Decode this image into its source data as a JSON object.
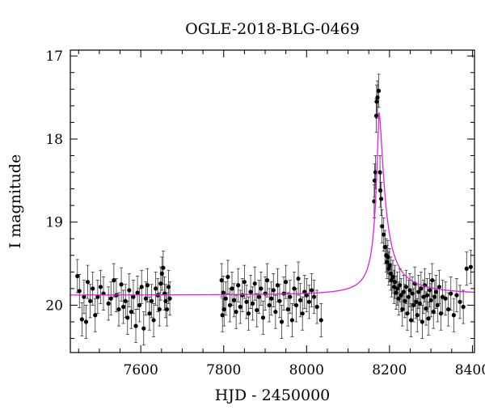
{
  "chart_data": {
    "type": "scatter",
    "title": "OGLE-2018-BLG-0469",
    "xlabel": "HJD - 2450000",
    "ylabel": "I magnitude",
    "xlim": [
      7430,
      8405
    ],
    "ylim": [
      20.57,
      16.93
    ],
    "y_inverted": true,
    "x_ticks": [
      7600,
      7800,
      8000,
      8200,
      8400
    ],
    "y_ticks": [
      17,
      18,
      19,
      20
    ],
    "grid": false,
    "marker_color": "#000000",
    "model_color": "#e020e0",
    "model": {
      "t0": 8175,
      "baseline": 19.88,
      "peak": 17.68,
      "tau_rise": 9,
      "tau_decay": 16,
      "gamma": 0.55
    },
    "error_bar": 0.2,
    "series": [
      {
        "points": [
          [
            7447,
            19.65
          ],
          [
            7452,
            19.83
          ],
          [
            7458,
            20.17
          ],
          [
            7463,
            19.9
          ],
          [
            7468,
            20.2
          ],
          [
            7472,
            19.72
          ],
          [
            7478,
            19.95
          ],
          [
            7484,
            19.8
          ],
          [
            7490,
            20.12
          ],
          [
            7496,
            19.9
          ],
          [
            7503,
            19.78
          ],
          [
            7510,
            19.86
          ],
          [
            7522,
            19.98
          ],
          [
            7528,
            19.92
          ],
          [
            7535,
            19.7
          ],
          [
            7541,
            19.88
          ],
          [
            7547,
            20.05
          ],
          [
            7553,
            19.75
          ],
          [
            7558,
            20.02
          ],
          [
            7563,
            19.95
          ],
          [
            7568,
            20.15
          ],
          [
            7572,
            19.82
          ],
          [
            7577,
            20.08
          ],
          [
            7582,
            19.9
          ],
          [
            7588,
            20.25
          ],
          [
            7592,
            19.85
          ],
          [
            7597,
            20.0
          ],
          [
            7602,
            19.78
          ],
          [
            7607,
            20.28
          ],
          [
            7612,
            19.92
          ],
          [
            7616,
            19.76
          ],
          [
            7621,
            20.1
          ],
          [
            7626,
            19.95
          ],
          [
            7631,
            20.18
          ],
          [
            7636,
            19.8
          ],
          [
            7641,
            19.88
          ],
          [
            7645,
            20.05
          ],
          [
            7648,
            19.74
          ],
          [
            7651,
            19.62
          ],
          [
            7654,
            19.55
          ],
          [
            7657,
            19.86
          ],
          [
            7660,
            19.95
          ],
          [
            7663,
            20.05
          ],
          [
            7667,
            19.78
          ],
          [
            7670,
            19.92
          ],
          [
            7795,
            19.7
          ],
          [
            7797,
            20.12
          ],
          [
            7799,
            19.85
          ],
          [
            7801,
            20.05
          ],
          [
            7805,
            19.92
          ],
          [
            7810,
            19.66
          ],
          [
            7815,
            20.0
          ],
          [
            7820,
            19.8
          ],
          [
            7825,
            19.94
          ],
          [
            7830,
            20.08
          ],
          [
            7835,
            19.76
          ],
          [
            7840,
            20.02
          ],
          [
            7845,
            19.88
          ],
          [
            7850,
            19.72
          ],
          [
            7855,
            19.96
          ],
          [
            7860,
            20.1
          ],
          [
            7865,
            19.84
          ],
          [
            7870,
            19.98
          ],
          [
            7875,
            19.74
          ],
          [
            7880,
            20.06
          ],
          [
            7885,
            19.9
          ],
          [
            7890,
            19.8
          ],
          [
            7895,
            20.15
          ],
          [
            7900,
            19.86
          ],
          [
            7905,
            19.7
          ],
          [
            7910,
            20.0
          ],
          [
            7915,
            19.92
          ],
          [
            7920,
            19.82
          ],
          [
            7925,
            20.08
          ],
          [
            7930,
            19.76
          ],
          [
            7935,
            19.95
          ],
          [
            7940,
            20.2
          ],
          [
            7945,
            19.86
          ],
          [
            7950,
            19.72
          ],
          [
            7955,
            20.05
          ],
          [
            7960,
            19.9
          ],
          [
            7965,
            20.18
          ],
          [
            7970,
            19.8
          ],
          [
            7975,
            20.0
          ],
          [
            7980,
            19.68
          ],
          [
            7985,
            19.94
          ],
          [
            7990,
            20.1
          ],
          [
            7995,
            19.84
          ],
          [
            8000,
            19.88
          ],
          [
            8006,
            19.96
          ],
          [
            8012,
            19.82
          ],
          [
            8018,
            19.9
          ],
          [
            8025,
            20.02
          ],
          [
            8035,
            20.18
          ],
          [
            8163,
            18.75
          ],
          [
            8164,
            18.5
          ],
          [
            8166,
            18.4
          ],
          [
            8168,
            17.72
          ],
          [
            8169,
            17.55
          ],
          [
            8171,
            17.5
          ],
          [
            8174,
            17.42
          ],
          [
            8177,
            18.4
          ],
          [
            8178,
            18.62
          ],
          [
            8180,
            18.72
          ],
          [
            8182,
            19.05
          ],
          [
            8186,
            19.15
          ],
          [
            8189,
            19.3
          ],
          [
            8192,
            19.4
          ],
          [
            8194,
            19.48
          ],
          [
            8196,
            19.42
          ],
          [
            8198,
            19.56
          ],
          [
            8200,
            19.52
          ],
          [
            8203,
            19.62
          ],
          [
            8205,
            19.7
          ],
          [
            8208,
            19.66
          ],
          [
            8211,
            19.78
          ],
          [
            8213,
            19.72
          ],
          [
            8216,
            19.85
          ],
          [
            8219,
            19.8
          ],
          [
            8222,
            19.92
          ],
          [
            8225,
            19.76
          ],
          [
            8228,
            19.88
          ],
          [
            8231,
            20.05
          ],
          [
            8234,
            19.84
          ],
          [
            8237,
            19.95
          ],
          [
            8240,
            19.78
          ],
          [
            8243,
            20.1
          ],
          [
            8246,
            19.9
          ],
          [
            8249,
            19.82
          ],
          [
            8252,
            20.18
          ],
          [
            8255,
            19.86
          ],
          [
            8258,
            20.0
          ],
          [
            8261,
            19.74
          ],
          [
            8264,
            19.96
          ],
          [
            8267,
            20.12
          ],
          [
            8270,
            19.84
          ],
          [
            8273,
            19.98
          ],
          [
            8276,
            19.8
          ],
          [
            8279,
            20.2
          ],
          [
            8282,
            19.9
          ],
          [
            8285,
            19.76
          ],
          [
            8288,
            20.04
          ],
          [
            8291,
            19.88
          ],
          [
            8294,
            20.16
          ],
          [
            8297,
            19.82
          ],
          [
            8300,
            19.94
          ],
          [
            8303,
            19.7
          ],
          [
            8306,
            20.08
          ],
          [
            8309,
            19.9
          ],
          [
            8312,
            19.84
          ],
          [
            8316,
            20.0
          ],
          [
            8320,
            19.78
          ],
          [
            8324,
            20.1
          ],
          [
            8328,
            19.9
          ],
          [
            8335,
            19.92
          ],
          [
            8342,
            20.05
          ],
          [
            8348,
            19.86
          ],
          [
            8355,
            20.12
          ],
          [
            8362,
            19.88
          ],
          [
            8370,
            19.96
          ],
          [
            8378,
            20.02
          ],
          [
            8386,
            19.56
          ],
          [
            8396,
            19.54
          ]
        ]
      }
    ]
  }
}
